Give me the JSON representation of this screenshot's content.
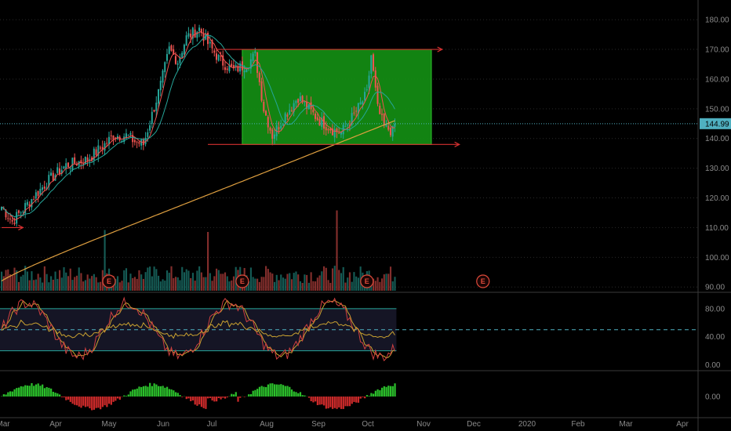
{
  "colors": {
    "up": "#26a69a",
    "down": "#ef5350",
    "ma_fast": "#ef5350",
    "ma_slow": "#26a69a",
    "ma_long": "#e0a040",
    "box_fill": "#138a13",
    "box_edge": "#2ac02a",
    "arrow": "#d43030",
    "grid": "#2a2a2a",
    "last_line": "#4fb0c0",
    "stoch_k": "#d04040",
    "stoch_d": "#c8a030",
    "stoch_band": "#26a69a",
    "macd_pos": "#2bbf2b",
    "macd_neg": "#cc2a2a",
    "earn_badge": "#e04a3a"
  },
  "chart_data": [
    {
      "type": "candlestick",
      "panel": "price",
      "price_ticks": [
        "180.00",
        "170.00",
        "160.00",
        "150.00",
        "140.00",
        "130.00",
        "120.00",
        "110.00",
        "100.00",
        "90.00"
      ],
      "ylim": [
        89,
        184
      ],
      "last_price": "144.99",
      "months": [
        "Mar",
        "Apr",
        "May",
        "Jun",
        "Jul",
        "Aug",
        "Sep",
        "Oct",
        "Nov",
        "Dec",
        "2020",
        "Feb",
        "Mar",
        "Apr"
      ],
      "trend": [
        [
          0,
          117
        ],
        [
          5,
          112
        ],
        [
          12,
          118
        ],
        [
          22,
          126
        ],
        [
          30,
          131
        ],
        [
          40,
          133
        ],
        [
          48,
          138
        ],
        [
          52,
          141
        ],
        [
          58,
          141
        ],
        [
          62,
          139
        ],
        [
          66,
          138
        ],
        [
          70,
          148
        ],
        [
          74,
          158
        ],
        [
          78,
          170
        ],
        [
          82,
          166
        ],
        [
          86,
          174
        ],
        [
          92,
          177
        ],
        [
          96,
          172
        ],
        [
          102,
          166
        ],
        [
          108,
          163
        ],
        [
          114,
          165
        ],
        [
          118,
          168
        ],
        [
          122,
          150
        ],
        [
          126,
          141
        ],
        [
          132,
          148
        ],
        [
          138,
          154
        ],
        [
          144,
          149
        ],
        [
          148,
          146
        ],
        [
          154,
          143
        ],
        [
          158,
          142
        ],
        [
          164,
          148
        ],
        [
          170,
          155
        ],
        [
          172,
          168
        ],
        [
          175,
          150
        ],
        [
          178,
          144
        ],
        [
          183,
          142
        ]
      ],
      "volume_events": [
        [
          50,
          113
        ],
        [
          48,
          310
        ],
        [
          96,
          300
        ],
        [
          156,
          410
        ]
      ],
      "box": {
        "x0": 112,
        "x1": 200,
        "y0": 138,
        "y1": 170
      },
      "arrows": [
        {
          "x0": 0,
          "x1": 10,
          "y": 110
        },
        {
          "x0": 100,
          "x1": 205,
          "y": 170
        },
        {
          "x0": 96,
          "x1": 213,
          "y": 138
        }
      ],
      "earnings": [
        "E",
        "E",
        "E",
        "E"
      ],
      "earnings_x": [
        50,
        112,
        170,
        224
      ]
    },
    {
      "type": "line",
      "panel": "stochastic",
      "ticks": [
        "80.00",
        "40.00",
        "0.00"
      ],
      "levels": [
        80,
        50,
        20
      ],
      "ylim": [
        -5,
        100
      ]
    },
    {
      "type": "bar",
      "panel": "macd-histogram",
      "ticks": [
        "0.00"
      ]
    }
  ]
}
